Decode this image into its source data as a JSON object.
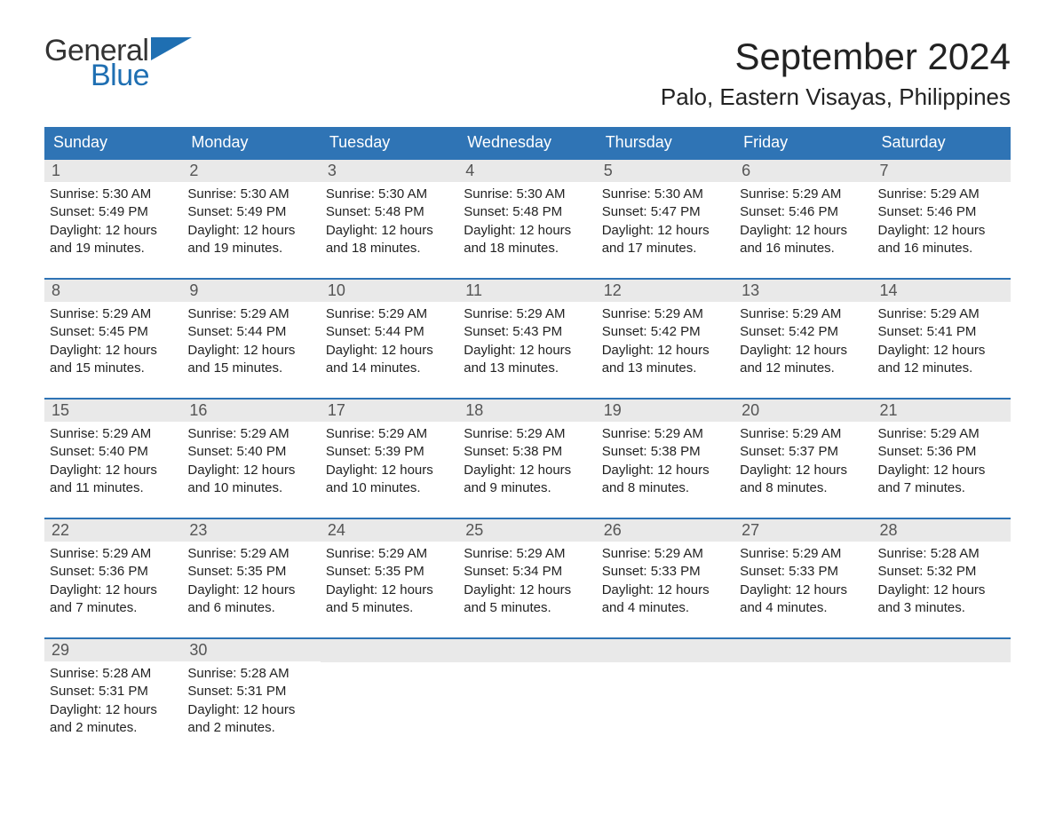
{
  "brand": {
    "line1": "General",
    "line2": "Blue",
    "accent_color": "#1f6fb2"
  },
  "title": "September 2024",
  "location": "Palo, Eastern Visayas, Philippines",
  "colors": {
    "header_bg": "#2f74b5",
    "header_text": "#ffffff",
    "daynum_bg": "#e9e9e9",
    "week_border": "#2f74b5",
    "text": "#222222",
    "background": "#ffffff"
  },
  "days_of_week": [
    "Sunday",
    "Monday",
    "Tuesday",
    "Wednesday",
    "Thursday",
    "Friday",
    "Saturday"
  ],
  "weeks": [
    [
      {
        "n": "1",
        "sunrise": "5:30 AM",
        "sunset": "5:49 PM",
        "daylight": "12 hours and 19 minutes."
      },
      {
        "n": "2",
        "sunrise": "5:30 AM",
        "sunset": "5:49 PM",
        "daylight": "12 hours and 19 minutes."
      },
      {
        "n": "3",
        "sunrise": "5:30 AM",
        "sunset": "5:48 PM",
        "daylight": "12 hours and 18 minutes."
      },
      {
        "n": "4",
        "sunrise": "5:30 AM",
        "sunset": "5:48 PM",
        "daylight": "12 hours and 18 minutes."
      },
      {
        "n": "5",
        "sunrise": "5:30 AM",
        "sunset": "5:47 PM",
        "daylight": "12 hours and 17 minutes."
      },
      {
        "n": "6",
        "sunrise": "5:29 AM",
        "sunset": "5:46 PM",
        "daylight": "12 hours and 16 minutes."
      },
      {
        "n": "7",
        "sunrise": "5:29 AM",
        "sunset": "5:46 PM",
        "daylight": "12 hours and 16 minutes."
      }
    ],
    [
      {
        "n": "8",
        "sunrise": "5:29 AM",
        "sunset": "5:45 PM",
        "daylight": "12 hours and 15 minutes."
      },
      {
        "n": "9",
        "sunrise": "5:29 AM",
        "sunset": "5:44 PM",
        "daylight": "12 hours and 15 minutes."
      },
      {
        "n": "10",
        "sunrise": "5:29 AM",
        "sunset": "5:44 PM",
        "daylight": "12 hours and 14 minutes."
      },
      {
        "n": "11",
        "sunrise": "5:29 AM",
        "sunset": "5:43 PM",
        "daylight": "12 hours and 13 minutes."
      },
      {
        "n": "12",
        "sunrise": "5:29 AM",
        "sunset": "5:42 PM",
        "daylight": "12 hours and 13 minutes."
      },
      {
        "n": "13",
        "sunrise": "5:29 AM",
        "sunset": "5:42 PM",
        "daylight": "12 hours and 12 minutes."
      },
      {
        "n": "14",
        "sunrise": "5:29 AM",
        "sunset": "5:41 PM",
        "daylight": "12 hours and 12 minutes."
      }
    ],
    [
      {
        "n": "15",
        "sunrise": "5:29 AM",
        "sunset": "5:40 PM",
        "daylight": "12 hours and 11 minutes."
      },
      {
        "n": "16",
        "sunrise": "5:29 AM",
        "sunset": "5:40 PM",
        "daylight": "12 hours and 10 minutes."
      },
      {
        "n": "17",
        "sunrise": "5:29 AM",
        "sunset": "5:39 PM",
        "daylight": "12 hours and 10 minutes."
      },
      {
        "n": "18",
        "sunrise": "5:29 AM",
        "sunset": "5:38 PM",
        "daylight": "12 hours and 9 minutes."
      },
      {
        "n": "19",
        "sunrise": "5:29 AM",
        "sunset": "5:38 PM",
        "daylight": "12 hours and 8 minutes."
      },
      {
        "n": "20",
        "sunrise": "5:29 AM",
        "sunset": "5:37 PM",
        "daylight": "12 hours and 8 minutes."
      },
      {
        "n": "21",
        "sunrise": "5:29 AM",
        "sunset": "5:36 PM",
        "daylight": "12 hours and 7 minutes."
      }
    ],
    [
      {
        "n": "22",
        "sunrise": "5:29 AM",
        "sunset": "5:36 PM",
        "daylight": "12 hours and 7 minutes."
      },
      {
        "n": "23",
        "sunrise": "5:29 AM",
        "sunset": "5:35 PM",
        "daylight": "12 hours and 6 minutes."
      },
      {
        "n": "24",
        "sunrise": "5:29 AM",
        "sunset": "5:35 PM",
        "daylight": "12 hours and 5 minutes."
      },
      {
        "n": "25",
        "sunrise": "5:29 AM",
        "sunset": "5:34 PM",
        "daylight": "12 hours and 5 minutes."
      },
      {
        "n": "26",
        "sunrise": "5:29 AM",
        "sunset": "5:33 PM",
        "daylight": "12 hours and 4 minutes."
      },
      {
        "n": "27",
        "sunrise": "5:29 AM",
        "sunset": "5:33 PM",
        "daylight": "12 hours and 4 minutes."
      },
      {
        "n": "28",
        "sunrise": "5:28 AM",
        "sunset": "5:32 PM",
        "daylight": "12 hours and 3 minutes."
      }
    ],
    [
      {
        "n": "29",
        "sunrise": "5:28 AM",
        "sunset": "5:31 PM",
        "daylight": "12 hours and 2 minutes."
      },
      {
        "n": "30",
        "sunrise": "5:28 AM",
        "sunset": "5:31 PM",
        "daylight": "12 hours and 2 minutes."
      },
      null,
      null,
      null,
      null,
      null
    ]
  ],
  "labels": {
    "sunrise": "Sunrise:",
    "sunset": "Sunset:",
    "daylight": "Daylight:"
  }
}
